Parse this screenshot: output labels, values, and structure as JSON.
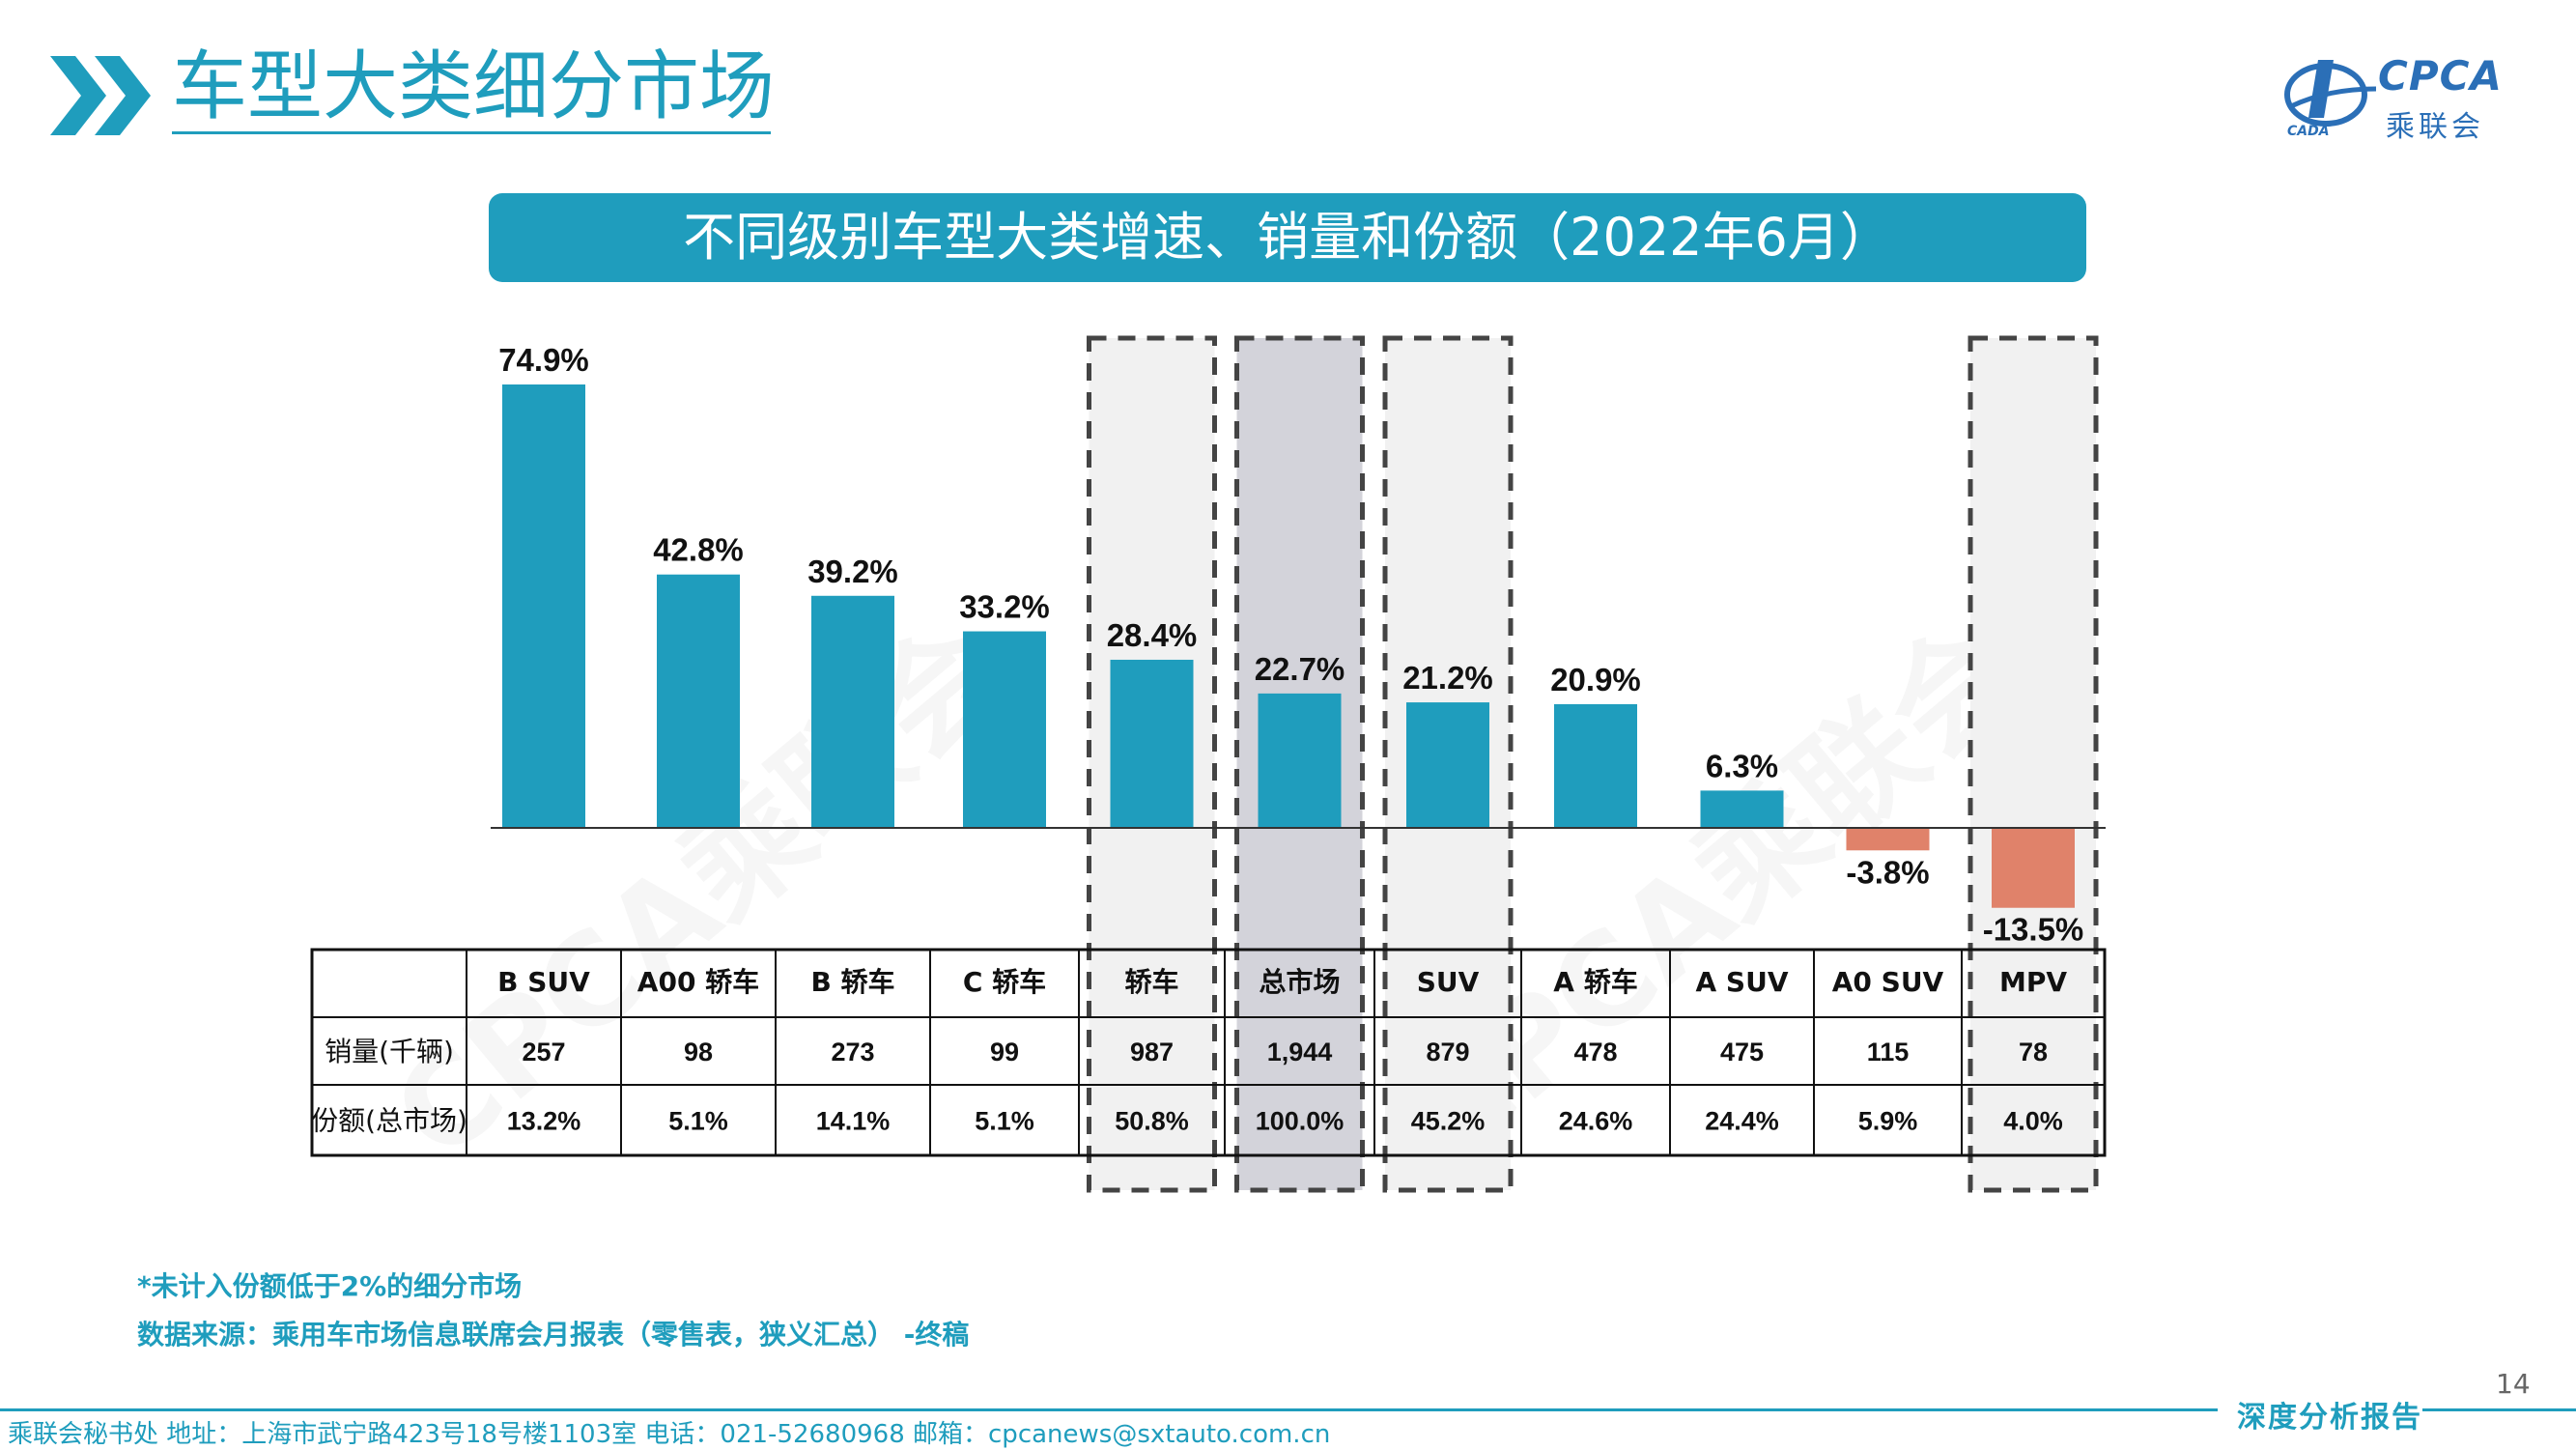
{
  "header": {
    "title": "车型大类细分市场",
    "logo_brand": "CPCA",
    "logo_cn": "乘联会",
    "logo_small": "CADA"
  },
  "chart_title": "不同级别车型大类增速、销量和份额（2022年6月）",
  "chart_data": {
    "type": "bar",
    "title": "不同级别车型大类增速、销量和份额（2022年6月）",
    "categories": [
      "B SUV",
      "A00 轿车",
      "B 轿车",
      "C 轿车",
      "轿车",
      "总市场",
      "SUV",
      "A 轿车",
      "A SUV",
      "A0 SUV",
      "MPV"
    ],
    "series": [
      {
        "values": [
          74.9,
          42.8,
          39.2,
          33.2,
          28.4,
          22.7,
          21.2,
          20.9,
          6.3,
          -3.8,
          -13.5
        ]
      }
    ],
    "value_labels": [
      "74.9%",
      "42.8%",
      "39.2%",
      "33.2%",
      "28.4%",
      "22.7%",
      "21.2%",
      "20.9%",
      "6.3%",
      "-3.8%",
      "-13.5%"
    ],
    "ylim": [
      -14,
      78
    ],
    "grid": false,
    "colors": {
      "positive": "#1f9dbd",
      "negative": "#e0826a"
    },
    "highlighted": [
      "轿车",
      "总市场",
      "SUV",
      "MPV"
    ],
    "table": {
      "row_labels": [
        "销量(千辆)",
        "份额(总市场)"
      ],
      "sales": [
        "257",
        "98",
        "273",
        "99",
        "987",
        "1,944",
        "879",
        "478",
        "475",
        "115",
        "78"
      ],
      "share": [
        "13.2%",
        "5.1%",
        "14.1%",
        "5.1%",
        "50.8%",
        "100.0%",
        "45.2%",
        "24.6%",
        "24.4%",
        "5.9%",
        "4.0%"
      ]
    }
  },
  "watermark": "CPCA乘联会",
  "footnotes": {
    "note": "*未计入份额低于2%的细分市场",
    "source": "数据来源：乘用车市场信息联席会月报表（零售表，狭义汇总） -终稿"
  },
  "page_number": "14",
  "footer": {
    "contact": "乘联会秘书处   地址：上海市武宁路423号18号楼1103室  电话：021-52680968   邮箱：cpcanews@sxtauto.com.cn",
    "report_label": "深度分析报告"
  }
}
